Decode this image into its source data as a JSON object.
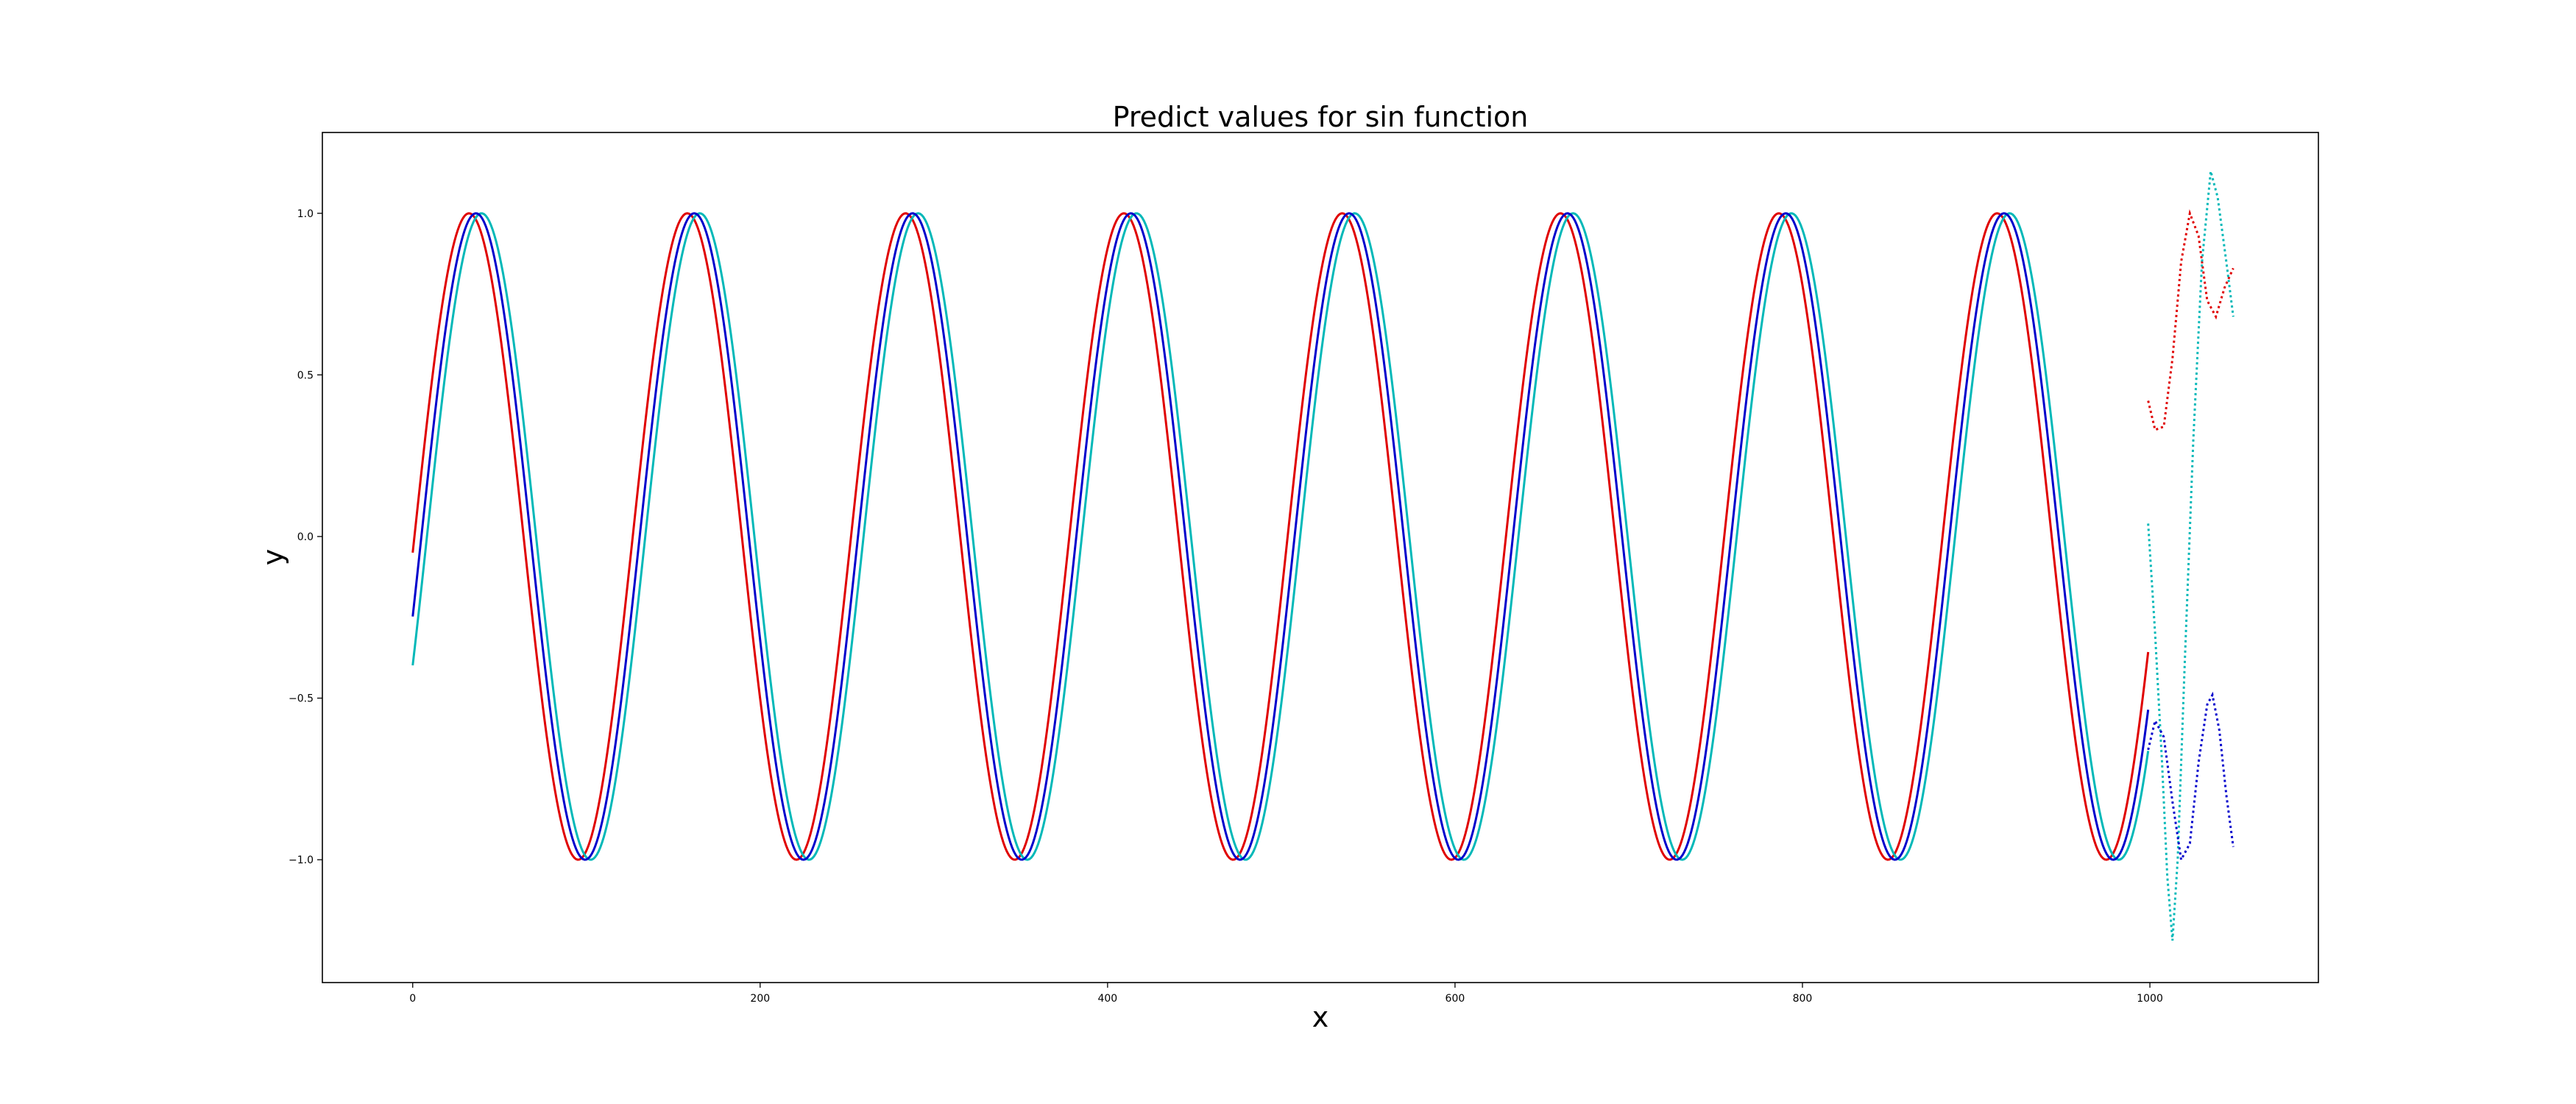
{
  "chart_data": {
    "type": "line",
    "title": "Predict values for sin function",
    "xlabel": "x",
    "ylabel": "y",
    "xlim": [
      -52,
      1097
    ],
    "ylim": [
      -1.38,
      1.25
    ],
    "x_ticks": [
      "0",
      "200",
      "400",
      "600",
      "800",
      "1000"
    ],
    "y_ticks": [
      "−1.0",
      "−0.5",
      "0.0",
      "0.5",
      "1.0"
    ],
    "grid": false,
    "legend": "none",
    "function": "y = sin(x / 20 + phase)",
    "history_x_range": [
      0,
      999
    ],
    "future_x_range": [
      999,
      1048
    ],
    "series": [
      {
        "color": "#e00000",
        "phase": -0.05,
        "history_style": "solid",
        "future_style": "dotted",
        "future_points": [
          [
            999,
            0.42
          ],
          [
            1003,
            0.33
          ],
          [
            1008,
            0.34
          ],
          [
            1013,
            0.55
          ],
          [
            1018,
            0.85
          ],
          [
            1023,
            1.0
          ],
          [
            1028,
            0.93
          ],
          [
            1033,
            0.73
          ],
          [
            1038,
            0.68
          ],
          [
            1043,
            0.77
          ],
          [
            1048,
            0.83
          ]
        ]
      },
      {
        "color": "#00b8b8",
        "phase": -0.41,
        "history_style": "solid",
        "future_style": "dotted",
        "future_points": [
          [
            999,
            0.04
          ],
          [
            1003,
            -0.3
          ],
          [
            1007,
            -0.7
          ],
          [
            1010,
            -1.05
          ],
          [
            1013,
            -1.25
          ],
          [
            1016,
            -1.0
          ],
          [
            1020,
            -0.4
          ],
          [
            1025,
            0.3
          ],
          [
            1030,
            0.85
          ],
          [
            1035,
            1.13
          ],
          [
            1039,
            1.05
          ],
          [
            1044,
            0.85
          ],
          [
            1048,
            0.68
          ]
        ]
      },
      {
        "color": "#0000cc",
        "phase": -0.25,
        "history_style": "solid",
        "future_style": "dotted",
        "future_points": [
          [
            999,
            -0.66
          ],
          [
            1003,
            -0.57
          ],
          [
            1008,
            -0.62
          ],
          [
            1013,
            -0.82
          ],
          [
            1018,
            -1.0
          ],
          [
            1023,
            -0.95
          ],
          [
            1028,
            -0.7
          ],
          [
            1033,
            -0.52
          ],
          [
            1036,
            -0.49
          ],
          [
            1040,
            -0.6
          ],
          [
            1044,
            -0.8
          ],
          [
            1048,
            -0.96
          ]
        ]
      }
    ]
  }
}
